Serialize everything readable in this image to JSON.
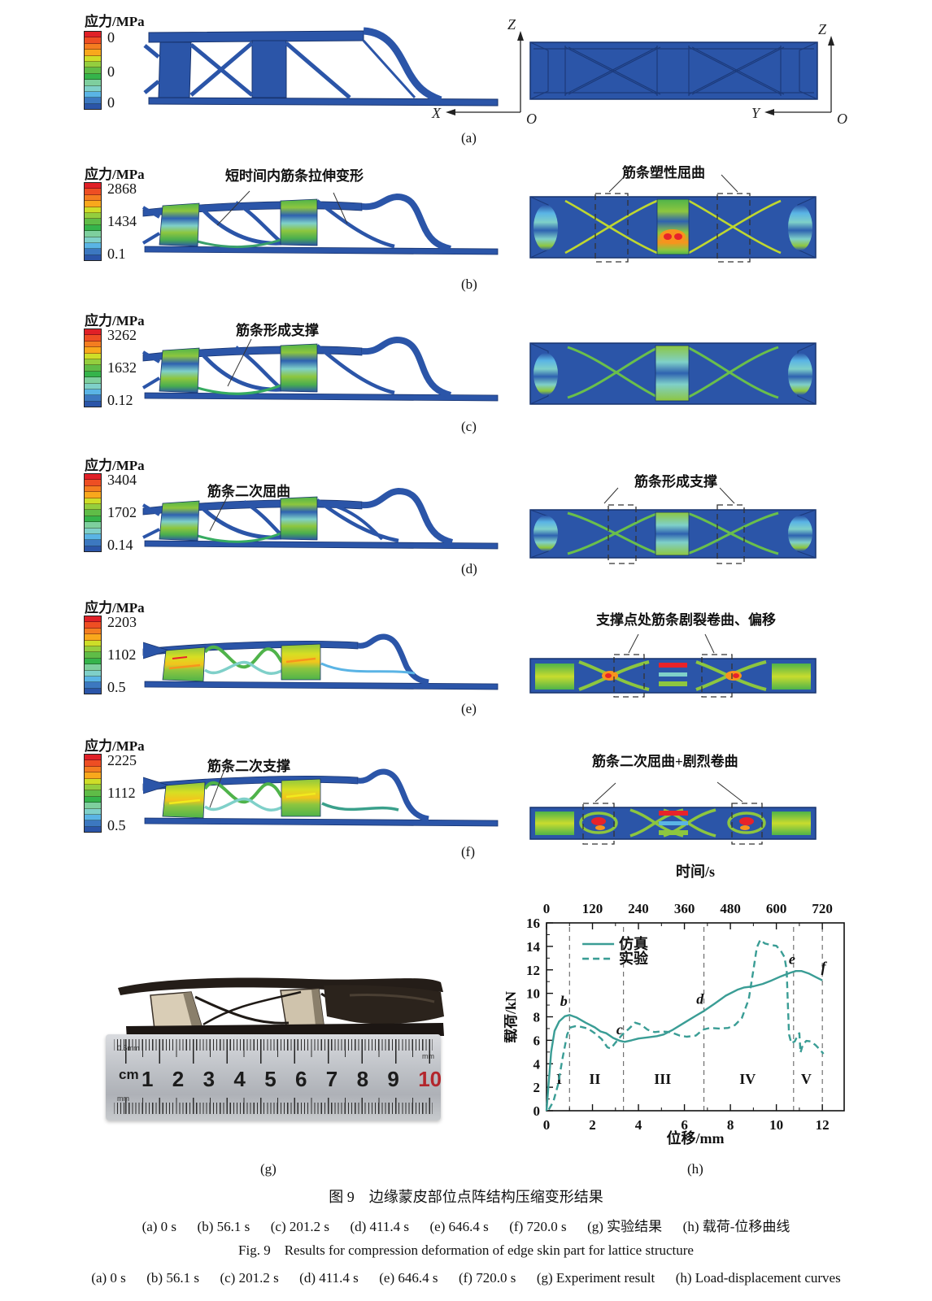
{
  "legend_title": "应力/MPa",
  "panels": {
    "a": {
      "label": "(a)",
      "legend": {
        "max": "0",
        "mid": "0",
        "min": "0"
      },
      "axes_side": {
        "up": "Z",
        "left": "X",
        "origin": "O"
      },
      "axes_front": {
        "up": "Z",
        "left": "Y",
        "origin": "O"
      }
    },
    "b": {
      "label": "(b)",
      "legend": {
        "max": "2868",
        "mid": "1434",
        "min": "0.1"
      },
      "annotation_side": "短时间内筋条拉伸变形",
      "annotation_front": "筋条塑性屈曲"
    },
    "c": {
      "label": "(c)",
      "legend": {
        "max": "3262",
        "mid": "1632",
        "min": "0.12"
      },
      "annotation_side": "筋条形成支撑"
    },
    "d": {
      "label": "(d)",
      "legend": {
        "max": "3404",
        "mid": "1702",
        "min": "0.14"
      },
      "annotation_side": "筋条二次屈曲",
      "annotation_front": "筋条形成支撑"
    },
    "e": {
      "label": "(e)",
      "legend": {
        "max": "2203",
        "mid": "1102",
        "min": "0.5"
      },
      "annotation_front": "支撑点处筋条剧裂卷曲、偏移"
    },
    "f": {
      "label": "(f)",
      "legend": {
        "max": "2225",
        "mid": "1112",
        "min": "0.5"
      },
      "annotation_side": "筋条二次支撑",
      "annotation_front": "筋条二次屈曲+剧烈卷曲"
    },
    "g": {
      "label": "(g)",
      "ruler": {
        "unit": "cm",
        "numbers": [
          "1",
          "2",
          "3",
          "4",
          "5",
          "6",
          "7",
          "8",
          "9",
          "10"
        ],
        "red_number": "10",
        "scale_note": "0.5mm",
        "mm_label": "mm"
      }
    },
    "h": {
      "label": "(h)"
    }
  },
  "colors": {
    "fea_blue": "#2b55a8",
    "fea_outline": "#17336e",
    "colorbar": [
      "#e02027",
      "#ee4e23",
      "#f47d20",
      "#f9a81c",
      "#cede28",
      "#94ce3e",
      "#5fbc47",
      "#35b44b",
      "#7ecf9e",
      "#7fd0c9",
      "#5ab4e5",
      "#3c78c0",
      "#2b55a8"
    ],
    "chart_teal": "#3a9d95",
    "ruler_red": "#b3262c"
  },
  "chart_data": {
    "type": "line",
    "top_axis_label": "时间/s",
    "xlabel": "位移/mm",
    "ylabel": "载荷/kN",
    "x_range": [
      0,
      12.95
    ],
    "y_range": [
      0,
      16
    ],
    "x_ticks": [
      0,
      2,
      4,
      6,
      8,
      10,
      12
    ],
    "x_minor_step": 1,
    "t_ticks": [
      0,
      120,
      240,
      360,
      480,
      600,
      720
    ],
    "t_minor_step": 60,
    "y_ticks": [
      0,
      2,
      4,
      6,
      8,
      10,
      12,
      14,
      16
    ],
    "y_minor_step": 1,
    "color": "#3a9d95",
    "legend": [
      {
        "label": "仿真",
        "dash": "solid"
      },
      {
        "label": "实验",
        "dash": "dashed"
      }
    ],
    "series": [
      {
        "name": "仿真",
        "dash": "solid",
        "points": [
          [
            0,
            0
          ],
          [
            0.1,
            2.5
          ],
          [
            0.2,
            5.0
          ],
          [
            0.35,
            6.8
          ],
          [
            0.55,
            7.6
          ],
          [
            0.8,
            8.05
          ],
          [
            1.0,
            8.15
          ],
          [
            1.3,
            7.95
          ],
          [
            1.7,
            7.5
          ],
          [
            2.1,
            7.1
          ],
          [
            2.35,
            6.75
          ],
          [
            2.6,
            6.6
          ],
          [
            2.9,
            6.2
          ],
          [
            3.2,
            5.95
          ],
          [
            3.4,
            5.87
          ],
          [
            3.7,
            6.0
          ],
          [
            4.0,
            6.15
          ],
          [
            4.4,
            6.25
          ],
          [
            4.8,
            6.35
          ],
          [
            5.1,
            6.5
          ],
          [
            5.5,
            6.9
          ],
          [
            6.0,
            7.5
          ],
          [
            6.5,
            8.1
          ],
          [
            6.85,
            8.5
          ],
          [
            7.3,
            9.1
          ],
          [
            7.8,
            9.8
          ],
          [
            8.3,
            10.3
          ],
          [
            8.6,
            10.5
          ],
          [
            9.0,
            10.6
          ],
          [
            9.4,
            10.8
          ],
          [
            9.8,
            11.1
          ],
          [
            10.2,
            11.45
          ],
          [
            10.6,
            11.75
          ],
          [
            10.85,
            11.9
          ],
          [
            11.1,
            11.9
          ],
          [
            11.4,
            11.7
          ],
          [
            11.7,
            11.4
          ],
          [
            12.0,
            11.1
          ]
        ]
      },
      {
        "name": "实验",
        "dash": "dashed",
        "points": [
          [
            0.1,
            0.1
          ],
          [
            0.3,
            0.8
          ],
          [
            0.5,
            2.2
          ],
          [
            0.7,
            4.5
          ],
          [
            0.9,
            6.5
          ],
          [
            1.05,
            7.1
          ],
          [
            1.25,
            7.2
          ],
          [
            1.5,
            7.15
          ],
          [
            1.8,
            7.0
          ],
          [
            2.1,
            6.6
          ],
          [
            2.4,
            6.1
          ],
          [
            2.65,
            5.4
          ],
          [
            2.8,
            5.3
          ],
          [
            3.0,
            5.8
          ],
          [
            3.3,
            6.5
          ],
          [
            3.6,
            7.0
          ],
          [
            3.85,
            7.5
          ],
          [
            4.1,
            7.35
          ],
          [
            4.4,
            6.9
          ],
          [
            4.7,
            6.7
          ],
          [
            5.0,
            6.75
          ],
          [
            5.4,
            6.7
          ],
          [
            5.8,
            6.4
          ],
          [
            6.1,
            6.3
          ],
          [
            6.5,
            6.4
          ],
          [
            6.8,
            6.9
          ],
          [
            7.1,
            7.05
          ],
          [
            7.5,
            7.0
          ],
          [
            7.9,
            7.05
          ],
          [
            8.2,
            7.3
          ],
          [
            8.5,
            7.9
          ],
          [
            8.8,
            9.5
          ],
          [
            9.0,
            12.0
          ],
          [
            9.15,
            13.9
          ],
          [
            9.3,
            14.55
          ],
          [
            9.5,
            14.25
          ],
          [
            9.8,
            14.1
          ],
          [
            10.0,
            14.05
          ],
          [
            10.2,
            13.6
          ],
          [
            10.35,
            13.1
          ],
          [
            10.45,
            12.0
          ],
          [
            10.5,
            9.0
          ],
          [
            10.55,
            6.5
          ],
          [
            10.65,
            5.75
          ],
          [
            10.8,
            5.9
          ],
          [
            10.95,
            6.5
          ],
          [
            11.0,
            6.6
          ],
          [
            11.05,
            4.95
          ],
          [
            11.15,
            5.6
          ],
          [
            11.3,
            5.95
          ],
          [
            11.5,
            5.9
          ],
          [
            11.7,
            5.6
          ],
          [
            11.9,
            5.2
          ],
          [
            12.05,
            4.85
          ]
        ]
      }
    ],
    "dividers": [
      1.0,
      3.35,
      6.85,
      10.75,
      12.0
    ],
    "regions": [
      {
        "label": "I",
        "x": 0.55,
        "y": 2.3
      },
      {
        "label": "II",
        "x": 2.1,
        "y": 2.3
      },
      {
        "label": "III",
        "x": 5.05,
        "y": 2.3
      },
      {
        "label": "IV",
        "x": 8.75,
        "y": 2.3
      },
      {
        "label": "V",
        "x": 11.3,
        "y": 2.3
      }
    ],
    "point_labels": [
      {
        "label": "b",
        "x": 0.75,
        "y": 8.95
      },
      {
        "label": "c",
        "x": 3.18,
        "y": 6.5
      },
      {
        "label": "d",
        "x": 6.68,
        "y": 9.1
      },
      {
        "label": "e",
        "x": 10.68,
        "y": 12.5
      },
      {
        "label": "f",
        "x": 12.05,
        "y": 11.85
      }
    ],
    "legend_pos": {
      "x1": 1.56,
      "x2": 2.94,
      "tx": 3.15,
      "y_solid": 14.2,
      "y_dashed": 12.95
    }
  },
  "caption": {
    "zh_title": "图 9    边缘蒙皮部位点阵结构压缩变形结果",
    "zh_items": "(a) 0 s      (b) 56.1 s      (c) 201.2 s      (d) 411.4 s      (e) 646.4 s      (f) 720.0 s      (g) 实验结果      (h) 载荷-位移曲线",
    "en_title": "Fig. 9    Results for compression deformation of edge skin part for lattice structure",
    "en_items": "(a) 0 s      (b) 56.1 s      (c) 201.2 s      (d) 411.4 s      (e) 646.4 s      (f) 720.0 s      (g) Experiment result      (h) Load-displacement curves"
  }
}
